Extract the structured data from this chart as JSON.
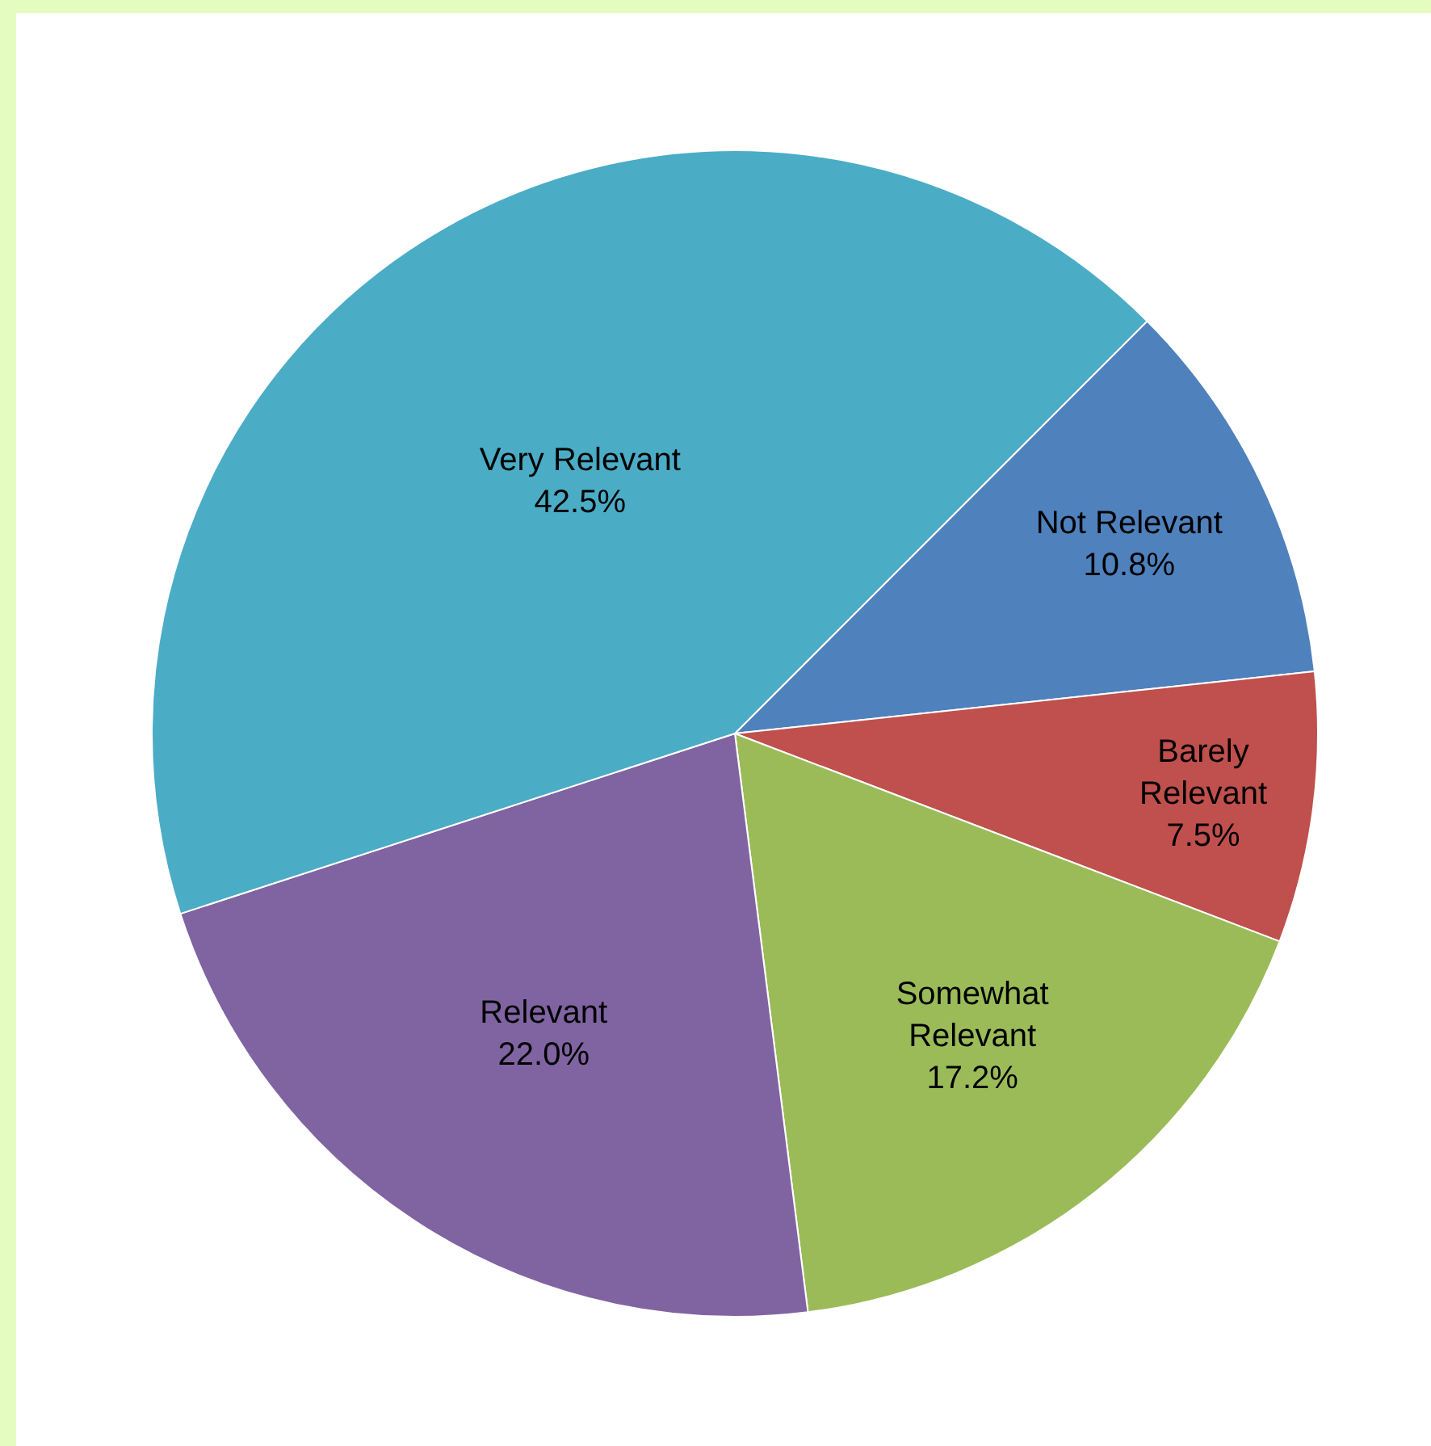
{
  "chart_data": {
    "type": "pie",
    "categories": [
      "Not Relevant",
      "Barely Relevant",
      "Somewhat Relevant",
      "Relevant",
      "Very Relevant"
    ],
    "values": [
      10.8,
      7.5,
      17.2,
      22.0,
      42.5
    ],
    "value_labels": [
      "10.8%",
      "7.5%",
      "17.2%",
      "22.0%",
      "42.5%"
    ],
    "colors": [
      "#4f81bd",
      "#c0504d",
      "#9bbb59",
      "#8064a2",
      "#4bacc6"
    ],
    "legend": false
  }
}
